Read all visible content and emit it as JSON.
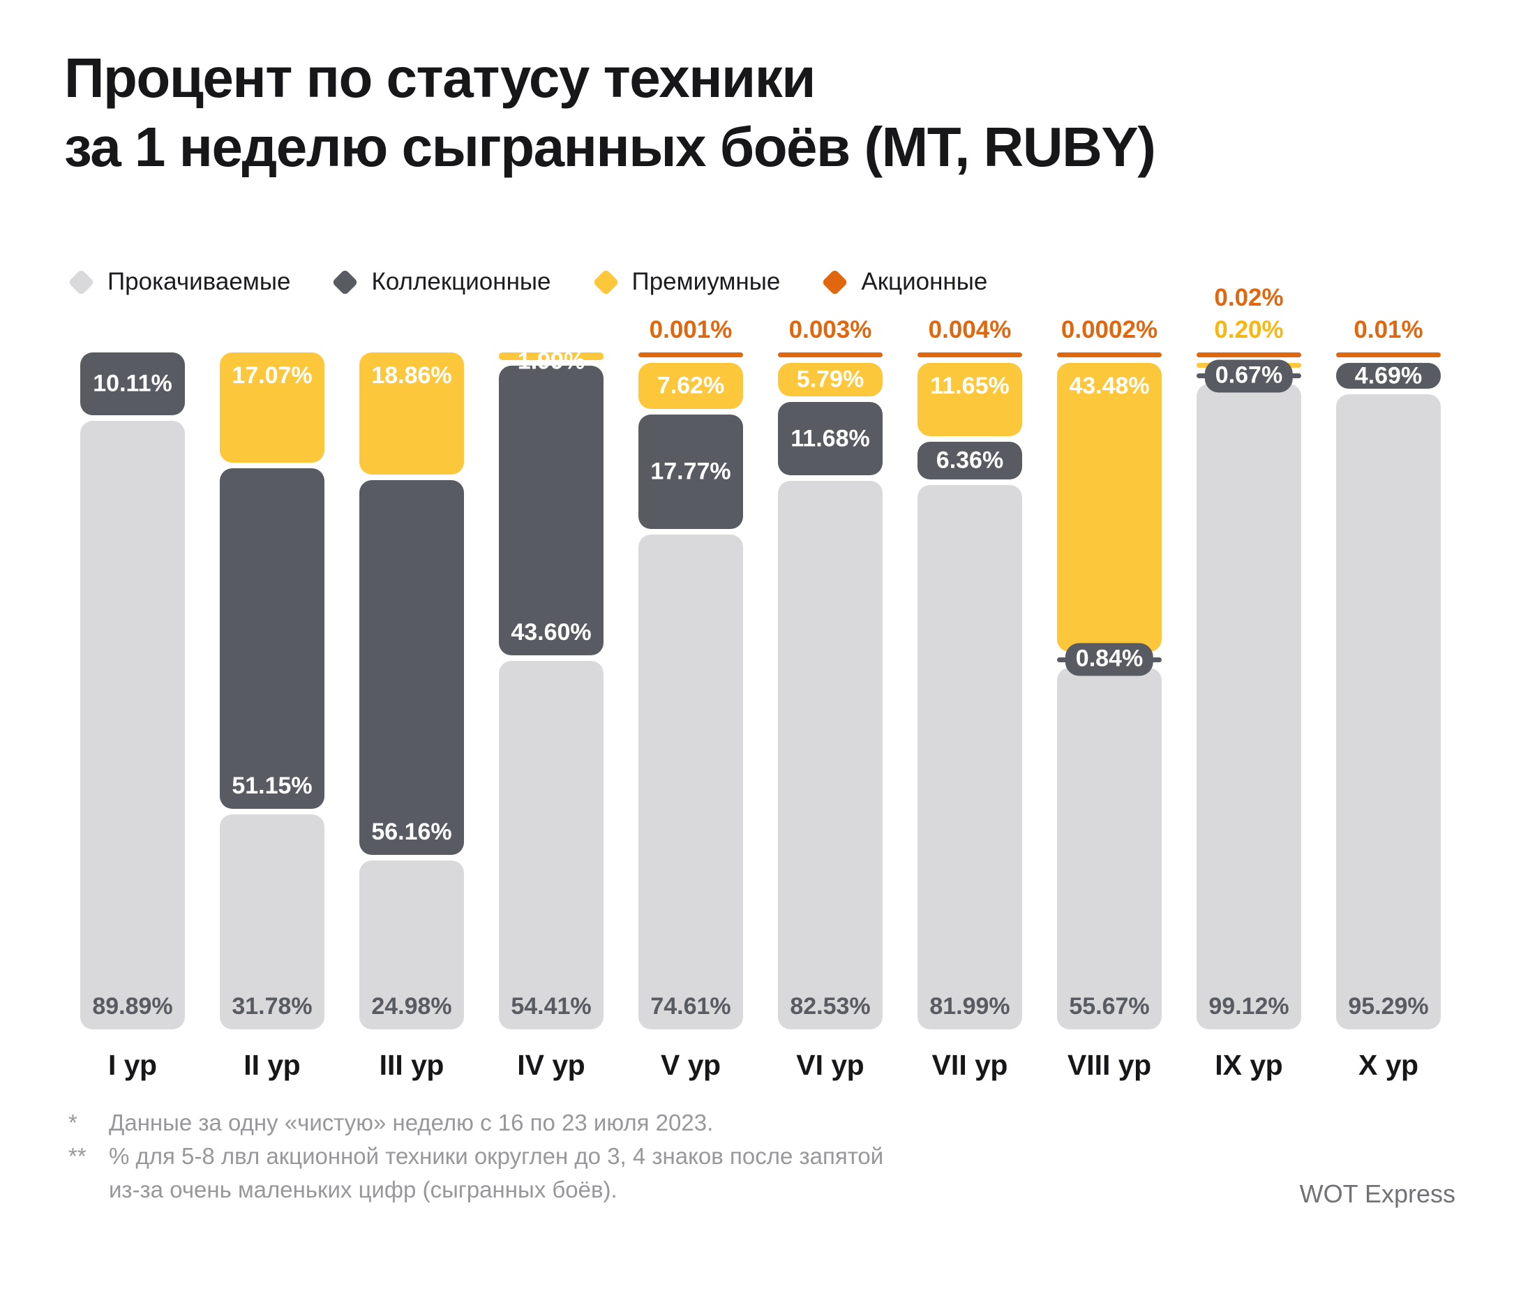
{
  "title": {
    "line1": "Процент по статусу техники",
    "line2": "за 1 неделю сыгранных боёв (МТ, RUBY)"
  },
  "colors": {
    "research": "#d9d9dc",
    "collection": "#595b62",
    "premium": "#fdc73c",
    "promo": "#e1670e",
    "research_text": "#595b62",
    "promo_text": "#e1670e",
    "premium_text": "#f6b713"
  },
  "chart_data": {
    "type": "stacked-bar",
    "unit": "percent",
    "ylim": [
      0,
      100
    ],
    "stack_order": "top-to-bottom",
    "categories": [
      "I ур",
      "II ур",
      "III ур",
      "IV ур",
      "V ур",
      "VI ур",
      "VII ур",
      "VIII ур",
      "IX ур",
      "X ур"
    ],
    "legend": [
      {
        "key": "research",
        "label": "Прокачиваемые",
        "color": "#d9d9dc"
      },
      {
        "key": "collection",
        "label": "Коллекционные",
        "color": "#595b62"
      },
      {
        "key": "premium",
        "label": "Премиумные",
        "color": "#fdc73c"
      },
      {
        "key": "promo",
        "label": "Акционные",
        "color": "#e1670e"
      }
    ],
    "bars": [
      {
        "category": "I ур",
        "segments": [
          {
            "key": "collection",
            "value": 10.11,
            "label": "10.11%",
            "label_pos": "center"
          },
          {
            "key": "research",
            "value": 89.89,
            "label": "89.89%",
            "label_pos": "bottom"
          }
        ]
      },
      {
        "category": "II ур",
        "segments": [
          {
            "key": "premium",
            "value": 17.07,
            "label": "17.07%",
            "label_pos": "top"
          },
          {
            "key": "collection",
            "value": 51.15,
            "label": "51.15%",
            "label_pos": "bottom"
          },
          {
            "key": "research",
            "value": 31.78,
            "label": "31.78%",
            "label_pos": "bottom"
          }
        ]
      },
      {
        "category": "III ур",
        "segments": [
          {
            "key": "premium",
            "value": 18.86,
            "label": "18.86%",
            "label_pos": "top"
          },
          {
            "key": "collection",
            "value": 56.16,
            "label": "56.16%",
            "label_pos": "bottom"
          },
          {
            "key": "research",
            "value": 24.98,
            "label": "24.98%",
            "label_pos": "bottom"
          }
        ]
      },
      {
        "category": "IV ур",
        "segments": [
          {
            "key": "premium",
            "value": 1.99,
            "label": "1.99%",
            "label_pos": "straddle"
          },
          {
            "key": "collection",
            "value": 43.6,
            "label": "43.60%",
            "label_pos": "bottom"
          },
          {
            "key": "research",
            "value": 54.41,
            "label": "54.41%",
            "label_pos": "bottom"
          }
        ]
      },
      {
        "category": "V ур",
        "above_labels": [
          {
            "key": "promo",
            "text": "0.001%"
          }
        ],
        "segments": [
          {
            "key": "promo",
            "value": 0.001
          },
          {
            "key": "premium",
            "value": 7.62,
            "label": "7.62%",
            "label_pos": "center"
          },
          {
            "key": "collection",
            "value": 17.77,
            "label": "17.77%",
            "label_pos": "center"
          },
          {
            "key": "research",
            "value": 74.61,
            "label": "74.61%",
            "label_pos": "bottom"
          }
        ]
      },
      {
        "category": "VI ур",
        "above_labels": [
          {
            "key": "promo",
            "text": "0.003%"
          }
        ],
        "segments": [
          {
            "key": "promo",
            "value": 0.003
          },
          {
            "key": "premium",
            "value": 5.79,
            "label": "5.79%",
            "label_pos": "center"
          },
          {
            "key": "collection",
            "value": 11.68,
            "label": "11.68%",
            "label_pos": "center"
          },
          {
            "key": "research",
            "value": 82.53,
            "label": "82.53%",
            "label_pos": "bottom"
          }
        ]
      },
      {
        "category": "VII ур",
        "above_labels": [
          {
            "key": "promo",
            "text": "0.004%"
          }
        ],
        "segments": [
          {
            "key": "promo",
            "value": 0.004
          },
          {
            "key": "premium",
            "value": 11.65,
            "label": "11.65%",
            "label_pos": "top"
          },
          {
            "key": "collection",
            "value": 6.36,
            "label": "6.36%",
            "label_pos": "center"
          },
          {
            "key": "research",
            "value": 81.99,
            "label": "81.99%",
            "label_pos": "bottom"
          }
        ]
      },
      {
        "category": "VIII ур",
        "above_labels": [
          {
            "key": "promo",
            "text": "0.0002%"
          }
        ],
        "segments": [
          {
            "key": "promo",
            "value": 0.0002
          },
          {
            "key": "premium",
            "value": 43.48,
            "label": "43.48%",
            "label_pos": "top"
          },
          {
            "key": "collection",
            "value": 0.84,
            "label": "0.84%",
            "label_pos": "pill"
          },
          {
            "key": "research",
            "value": 55.67,
            "label": "55.67%",
            "label_pos": "bottom"
          }
        ]
      },
      {
        "category": "IX ур",
        "above_labels": [
          {
            "key": "promo",
            "text": "0.02%"
          },
          {
            "key": "premium",
            "text": "0.20%"
          }
        ],
        "segments": [
          {
            "key": "promo",
            "value": 0.02
          },
          {
            "key": "premium",
            "value": 0.2
          },
          {
            "key": "collection",
            "value": 0.67,
            "label": "0.67%",
            "label_pos": "pill"
          },
          {
            "key": "research",
            "value": 99.12,
            "label": "99.12%",
            "label_pos": "bottom"
          }
        ]
      },
      {
        "category": "X ур",
        "above_labels": [
          {
            "key": "promo",
            "text": "0.01%"
          }
        ],
        "segments": [
          {
            "key": "promo",
            "value": 0.01
          },
          {
            "key": "collection",
            "value": 4.69,
            "label": "4.69%",
            "label_pos": "center"
          },
          {
            "key": "research",
            "value": 95.29,
            "label": "95.29%",
            "label_pos": "bottom"
          }
        ]
      }
    ]
  },
  "footnotes": [
    {
      "marker": "*",
      "text": "Данные за одну «чистую» неделю с 16 по 23 июля 2023."
    },
    {
      "marker": "**",
      "text": "% для 5-8 лвл акционной техники округлен до 3, 4 знаков после запятой",
      "text2": "из-за очень маленьких цифр (сыгранных боёв)."
    }
  ],
  "credit": "WOT Express"
}
